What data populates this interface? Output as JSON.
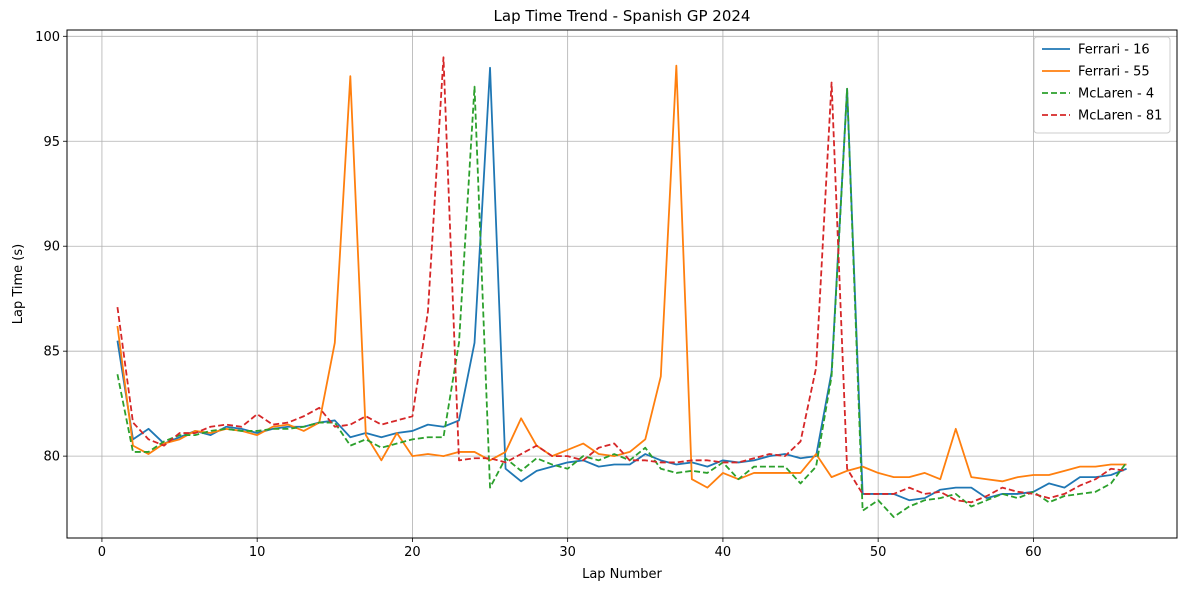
{
  "chart_data": {
    "type": "line",
    "title": "Lap Time Trend - Spanish GP 2024",
    "xlabel": "Lap Number",
    "ylabel": "Lap Time (s)",
    "xlim": [
      -2.25,
      69.25
    ],
    "ylim": [
      76.1,
      100.3
    ],
    "xticks": [
      0,
      10,
      20,
      30,
      40,
      50,
      60
    ],
    "yticks": [
      80,
      85,
      90,
      95,
      100
    ],
    "grid": true,
    "legend_position": "top-right",
    "x": [
      1,
      2,
      3,
      4,
      5,
      6,
      7,
      8,
      9,
      10,
      11,
      12,
      13,
      14,
      15,
      16,
      17,
      18,
      19,
      20,
      21,
      22,
      23,
      24,
      25,
      26,
      27,
      28,
      29,
      30,
      31,
      32,
      33,
      34,
      35,
      36,
      37,
      38,
      39,
      40,
      41,
      42,
      43,
      44,
      45,
      46,
      47,
      48,
      49,
      50,
      51,
      52,
      53,
      54,
      55,
      56,
      57,
      58,
      59,
      60,
      61,
      62,
      63,
      64,
      65,
      66
    ],
    "series": [
      {
        "name": "Ferrari - 16",
        "color": "#1f77b4",
        "dash": "solid",
        "values": [
          85.5,
          80.8,
          81.3,
          80.6,
          80.9,
          81.2,
          81.0,
          81.4,
          81.3,
          81.1,
          81.3,
          81.4,
          81.4,
          81.6,
          81.7,
          80.9,
          81.1,
          80.9,
          81.1,
          81.2,
          81.5,
          81.4,
          81.7,
          85.4,
          98.5,
          79.4,
          78.8,
          79.3,
          79.5,
          79.7,
          79.8,
          79.5,
          79.6,
          79.6,
          80.1,
          79.8,
          79.6,
          79.7,
          79.5,
          79.8,
          79.7,
          79.8,
          80.0,
          80.1,
          79.9,
          80.0,
          84.0,
          97.5,
          78.2,
          78.2,
          78.2,
          77.9,
          78.0,
          78.4,
          78.5,
          78.5,
          78.0,
          78.2,
          78.2,
          78.3,
          78.7,
          78.5,
          79.0,
          79.0,
          79.1,
          79.4
        ]
      },
      {
        "name": "Ferrari - 55",
        "color": "#ff7f0e",
        "dash": "solid",
        "values": [
          86.2,
          80.5,
          80.1,
          80.6,
          80.8,
          81.2,
          81.1,
          81.3,
          81.2,
          81.0,
          81.4,
          81.5,
          81.2,
          81.6,
          85.4,
          98.1,
          81.0,
          79.8,
          81.1,
          80.0,
          80.1,
          80.0,
          80.2,
          80.2,
          79.8,
          80.2,
          81.8,
          80.5,
          80.0,
          80.3,
          80.6,
          80.1,
          80.0,
          80.2,
          80.8,
          83.8,
          98.6,
          78.9,
          78.5,
          79.2,
          78.9,
          79.2,
          79.2,
          79.2,
          79.2,
          80.1,
          79.0,
          79.3,
          79.5,
          79.2,
          79.0,
          79.0,
          79.2,
          78.9,
          81.3,
          79.0,
          78.9,
          78.8,
          79.0,
          79.1,
          79.1,
          79.3,
          79.5,
          79.5,
          79.6,
          79.6
        ]
      },
      {
        "name": "McLaren - 4",
        "color": "#2ca02c",
        "dash": "dashed",
        "values": [
          83.9,
          80.2,
          80.2,
          80.7,
          81.0,
          81.0,
          81.2,
          81.3,
          81.2,
          81.2,
          81.3,
          81.3,
          81.4,
          81.6,
          81.6,
          80.5,
          80.8,
          80.4,
          80.6,
          80.8,
          80.9,
          80.9,
          85.4,
          97.6,
          78.5,
          79.9,
          79.3,
          79.9,
          79.6,
          79.4,
          80.0,
          79.8,
          80.1,
          79.8,
          80.4,
          79.4,
          79.2,
          79.3,
          79.2,
          79.7,
          78.9,
          79.5,
          79.5,
          79.5,
          78.7,
          79.5,
          83.8,
          97.5,
          77.4,
          77.9,
          77.1,
          77.6,
          77.9,
          78.0,
          78.2,
          77.6,
          77.9,
          78.2,
          78.0,
          78.3,
          77.8,
          78.1,
          78.2,
          78.3,
          78.7,
          79.7
        ]
      },
      {
        "name": "McLaren - 81",
        "color": "#d62728",
        "dash": "dashed",
        "values": [
          87.1,
          81.6,
          80.8,
          80.5,
          81.1,
          81.1,
          81.4,
          81.5,
          81.4,
          82.0,
          81.5,
          81.6,
          81.9,
          82.3,
          81.4,
          81.5,
          81.9,
          81.5,
          81.7,
          81.9,
          86.9,
          99.0,
          79.8,
          79.9,
          79.9,
          79.7,
          80.1,
          80.5,
          80.0,
          80.0,
          79.8,
          80.4,
          80.6,
          79.8,
          79.8,
          79.7,
          79.7,
          79.8,
          79.8,
          79.7,
          79.7,
          79.9,
          80.1,
          80.0,
          80.7,
          84.2,
          97.8,
          79.4,
          78.2,
          78.2,
          78.2,
          78.5,
          78.2,
          78.3,
          77.9,
          77.8,
          78.1,
          78.5,
          78.3,
          78.2,
          78.0,
          78.2,
          78.6,
          78.9,
          79.4,
          79.3
        ]
      }
    ]
  }
}
